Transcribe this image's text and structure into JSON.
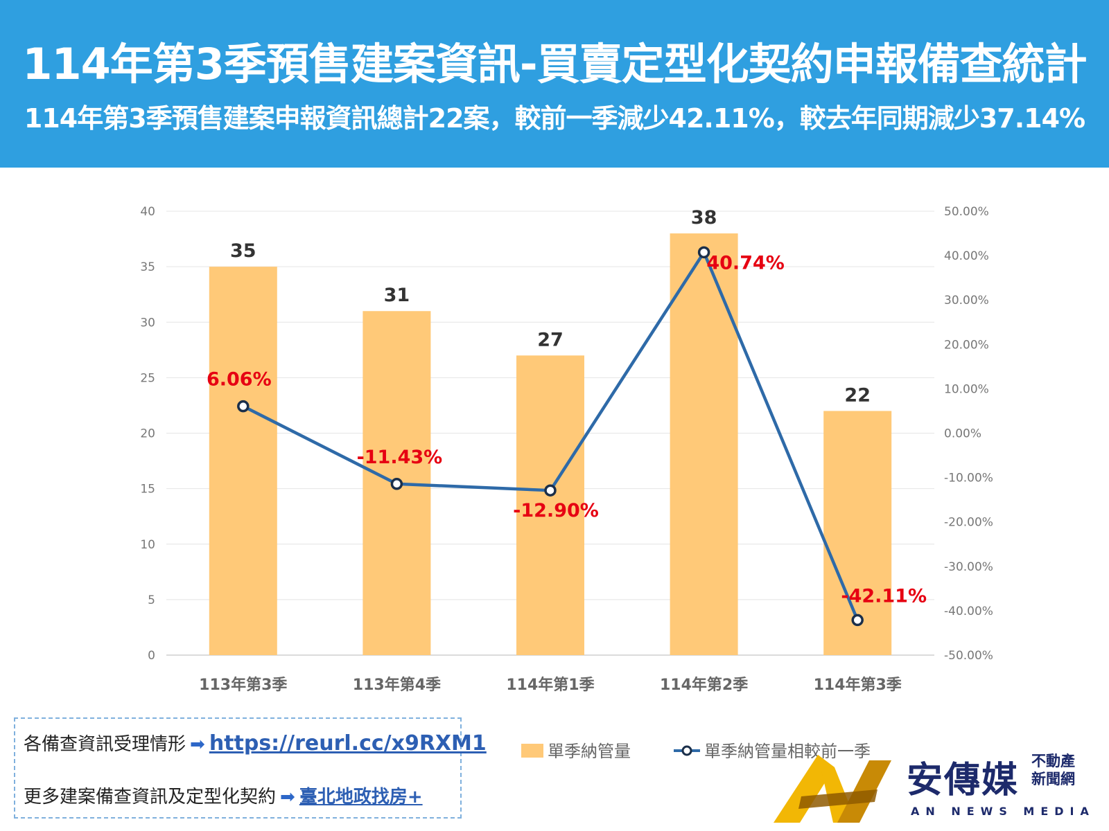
{
  "header": {
    "title": "114年第3季預售建案資訊-買賣定型化契約申報備查統計",
    "subtitle": "114年第3季預售建案申報資訊總計22案，較前一季減少42.11%，較去年同期減少37.14%"
  },
  "chart_data": {
    "type": "bar",
    "categories": [
      "113年第3季",
      "113年第4季",
      "114年第1季",
      "114年第2季",
      "114年第3季"
    ],
    "series": [
      {
        "name": "單季納管量",
        "type": "bar",
        "axis": "left",
        "values": [
          35,
          31,
          27,
          38,
          22
        ],
        "labels": [
          "35",
          "31",
          "27",
          "38",
          "22"
        ],
        "color": "#ffc978"
      },
      {
        "name": "單季納管量相較前一季",
        "type": "line",
        "axis": "right",
        "values": [
          6.06,
          -11.43,
          -12.9,
          40.74,
          -42.11
        ],
        "labels": [
          "6.06%",
          "-11.43%",
          "-12.90%",
          "40.74%",
          "-42.11%"
        ],
        "color": "#2e6aa8"
      }
    ],
    "ylim_left": [
      0,
      40
    ],
    "yticks_left": [
      "0",
      "5",
      "10",
      "15",
      "20",
      "25",
      "30",
      "35",
      "40"
    ],
    "ylim_right": [
      -50,
      50
    ],
    "yticks_right": [
      "-50.00%",
      "-40.00%",
      "-30.00%",
      "-20.00%",
      "-10.00%",
      "0.00%",
      "10.00%",
      "20.00%",
      "30.00%",
      "40.00%",
      "50.00%"
    ],
    "grid": true,
    "legend_position": "bottom-center",
    "label_color": "#e60012"
  },
  "info": {
    "row1_text": "各備查資訊受理情形",
    "row1_link": "https://reurl.cc/x9RXM1",
    "row2_text": "更多建案備查資訊及定型化契約",
    "row2_link": "臺北地政找房+"
  },
  "logo": {
    "name_cn": "安傳媒",
    "tag_line1": "不動產",
    "tag_line2": "新聞網",
    "name_en": "AN NEWS MEDIA"
  }
}
